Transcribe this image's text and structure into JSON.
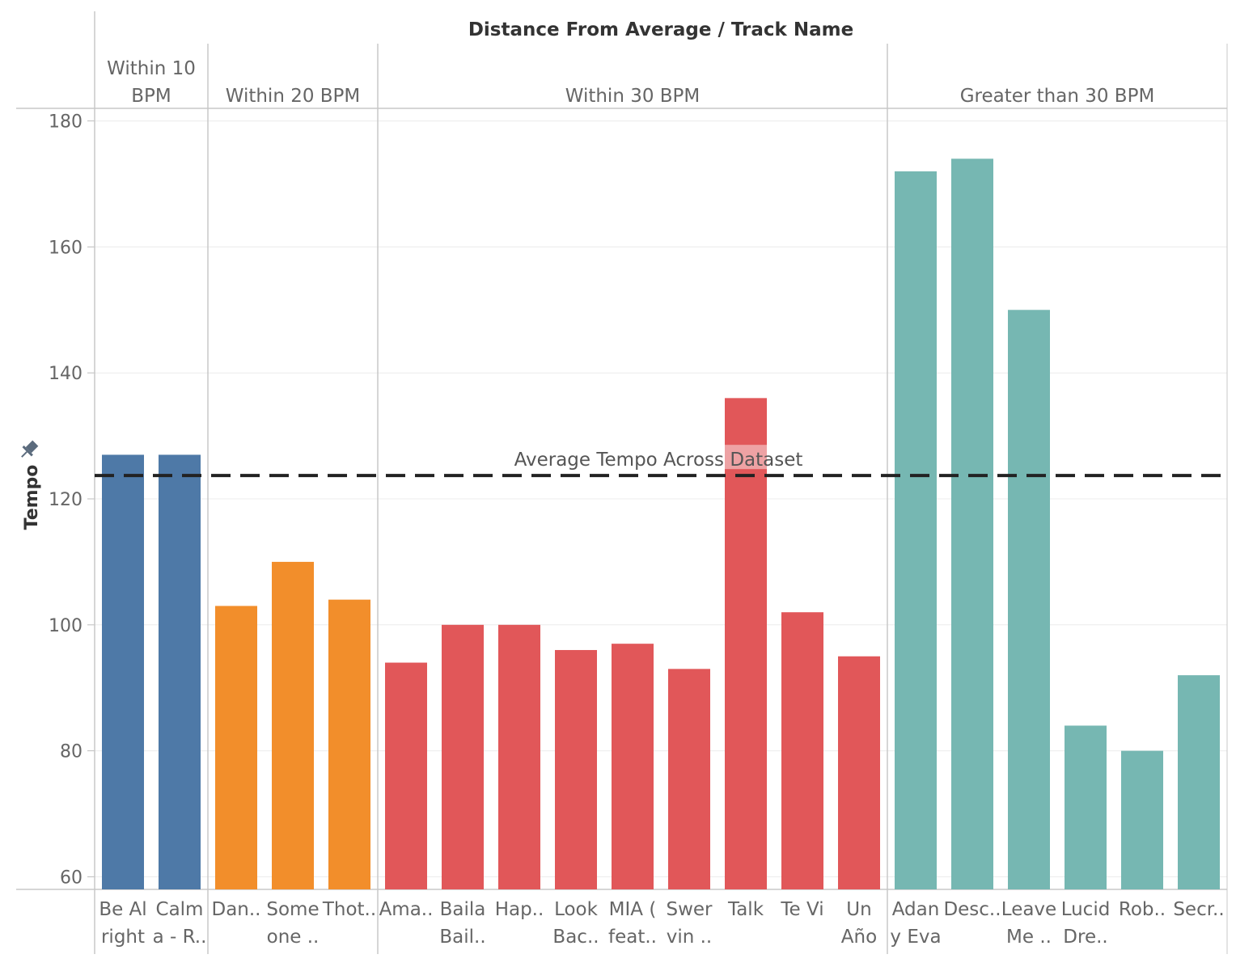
{
  "chart_data": {
    "type": "bar",
    "title": "Distance From Average  /  Track Name",
    "ylabel": "Tempo",
    "ylim": [
      58,
      182
    ],
    "yticks": [
      60,
      80,
      100,
      120,
      140,
      160,
      180
    ],
    "grid": true,
    "reference_line": {
      "label": "Average Tempo Across Dataset",
      "value": 123.7
    },
    "groups": [
      {
        "name_lines": [
          "Within 10",
          "BPM"
        ],
        "color": "#4e79a7",
        "bars": [
          {
            "label_lines": [
              "Be Al",
              "right"
            ],
            "value": 127
          },
          {
            "label_lines": [
              "Calm",
              "a - R.."
            ],
            "value": 127
          }
        ]
      },
      {
        "name_lines": [
          "Within 20 BPM"
        ],
        "color": "#f28e2b",
        "bars": [
          {
            "label_lines": [
              "Dan.."
            ],
            "value": 103
          },
          {
            "label_lines": [
              "Some",
              "one .."
            ],
            "value": 110
          },
          {
            "label_lines": [
              "Thot.."
            ],
            "value": 104
          }
        ]
      },
      {
        "name_lines": [
          "Within 30 BPM"
        ],
        "color": "#e15759",
        "bars": [
          {
            "label_lines": [
              "Ama.."
            ],
            "value": 94
          },
          {
            "label_lines": [
              "Baila",
              "Bail.."
            ],
            "value": 100
          },
          {
            "label_lines": [
              "Hap.."
            ],
            "value": 100
          },
          {
            "label_lines": [
              "Look",
              "Bac.."
            ],
            "value": 96
          },
          {
            "label_lines": [
              "MIA (",
              "feat.."
            ],
            "value": 97
          },
          {
            "label_lines": [
              "Swer",
              "vin .."
            ],
            "value": 93
          },
          {
            "label_lines": [
              "Talk"
            ],
            "value": 136
          },
          {
            "label_lines": [
              "Te Vi"
            ],
            "value": 102
          },
          {
            "label_lines": [
              "Un",
              "Año"
            ],
            "value": 95
          }
        ]
      },
      {
        "name_lines": [
          "Greater than 30 BPM"
        ],
        "color": "#76b7b2",
        "bars": [
          {
            "label_lines": [
              "Adan",
              "y Eva"
            ],
            "value": 172
          },
          {
            "label_lines": [
              "Desc.."
            ],
            "value": 174
          },
          {
            "label_lines": [
              "Leave",
              "Me .."
            ],
            "value": 150
          },
          {
            "label_lines": [
              "Lucid",
              "Dre.."
            ],
            "value": 84
          },
          {
            "label_lines": [
              "Rob.."
            ],
            "value": 80
          },
          {
            "label_lines": [
              "Secr.."
            ],
            "value": 92
          }
        ]
      }
    ]
  }
}
